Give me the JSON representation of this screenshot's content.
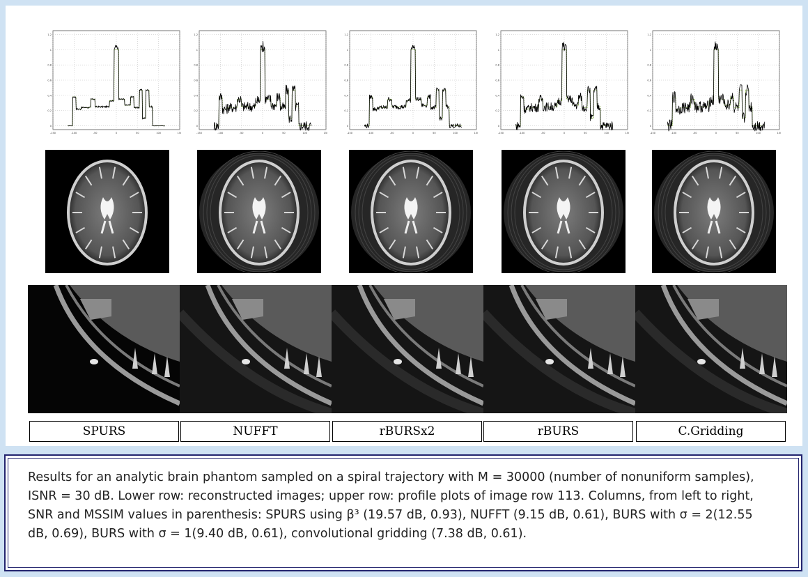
{
  "columns": [
    {
      "label": "SPURS",
      "tick_labels": [
        "-150",
        "-100",
        "-50",
        "0",
        "50",
        "100",
        "150"
      ]
    },
    {
      "label": "NUFFT",
      "tick_labels": [
        "-150",
        "-100",
        "-50",
        "0",
        "50",
        "100",
        "150"
      ]
    },
    {
      "label": "rBURSx2",
      "tick_labels": [
        "-150",
        "-100",
        "-50",
        "0",
        "50",
        "100",
        "150"
      ]
    },
    {
      "label": "rBURS",
      "tick_labels": [
        "-150",
        "-100",
        "-50",
        "0",
        "50",
        "100",
        "150"
      ]
    },
    {
      "label": "C.Gridding",
      "tick_labels": [
        "-150",
        "-100",
        "-50",
        "0",
        "50",
        "100",
        "150"
      ]
    }
  ],
  "y_tick_labels": [
    "0",
    "0.2",
    "0.4",
    "0.6",
    "0.8",
    "1",
    "1.2"
  ],
  "caption": "Results for an analytic brain phantom sampled on a spiral trajectory with M = 30000 (number of nonuniform samples), ISNR = 30 dB. Lower row: reconstructed images; upper row: profile plots of image row 113. Columns, from left to right, SNR and MSSIM values in parenthesis: SPURS using β³ (19.57 dB, 0.93), NUFFT (9.15 dB, 0.61), BURS with σ = 2(12.55 dB, 0.69), BURS with σ = 1(9.40 dB, 0.61), convolutional gridding (7.38 dB, 0.61).",
  "colors": {
    "background": "#cfe2f3",
    "border": "#23246e",
    "reference_line": "#7aa83a",
    "profile_line": "#000000"
  },
  "chart_data": [
    {
      "type": "line",
      "title": "",
      "xlabel": "",
      "ylabel": "",
      "xlim": [
        -150,
        150
      ],
      "ylim": [
        -0.05,
        1.25
      ],
      "grid": true,
      "series": [
        {
          "values_noise": 0.01
        },
        {
          "values_noise": 0.0
        }
      ]
    },
    {
      "type": "line",
      "title": "",
      "xlabel": "",
      "ylabel": "",
      "xlim": [
        -150,
        150
      ],
      "ylim": [
        -0.05,
        1.25
      ],
      "grid": true,
      "series": [
        {
          "values_noise": 0.07
        },
        {
          "values_noise": 0.0
        }
      ]
    },
    {
      "type": "line",
      "title": "",
      "xlabel": "",
      "ylabel": "",
      "xlim": [
        -150,
        150
      ],
      "ylim": [
        -0.05,
        1.25
      ],
      "grid": true,
      "series": [
        {
          "values_noise": 0.03
        },
        {
          "values_noise": 0.0
        }
      ]
    },
    {
      "type": "line",
      "title": "",
      "xlabel": "",
      "ylabel": "",
      "xlim": [
        -150,
        150
      ],
      "ylim": [
        -0.05,
        1.25
      ],
      "grid": true,
      "series": [
        {
          "values_noise": 0.06
        },
        {
          "values_noise": 0.0
        }
      ]
    },
    {
      "type": "line",
      "title": "",
      "xlabel": "",
      "ylabel": "",
      "xlim": [
        -150,
        150
      ],
      "ylim": [
        -0.05,
        1.25
      ],
      "grid": true,
      "series": [
        {
          "values_noise": 0.08
        },
        {
          "values_noise": 0.0
        }
      ]
    }
  ]
}
